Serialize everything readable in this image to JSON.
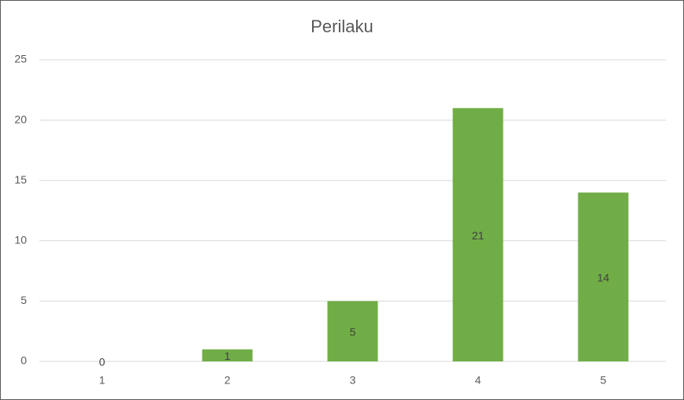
{
  "chart_data": {
    "type": "bar",
    "title": "Perilaku",
    "categories": [
      "1",
      "2",
      "3",
      "4",
      "5"
    ],
    "values": [
      0,
      1,
      5,
      21,
      14
    ],
    "color": "#70ad47",
    "ylim": [
      0,
      25
    ],
    "yticks": [
      0,
      5,
      10,
      15,
      20,
      25
    ],
    "grid": true,
    "data_labels": true
  }
}
